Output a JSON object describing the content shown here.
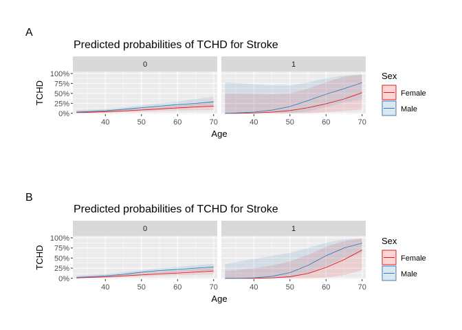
{
  "figure": {
    "colors": {
      "female": "#E41A1C",
      "male": "#377EB8",
      "female_ribbon": "#E41A1C",
      "male_ribbon": "#377EB8"
    },
    "legend": {
      "title": "Sex",
      "labels": [
        "Female",
        "Male"
      ],
      "placement": "right"
    }
  },
  "chart_data": [
    {
      "panel_label": "A",
      "type": "line",
      "title": "Predicted probabilities of TCHD for Stroke",
      "xlabel": "Age",
      "ylabel": "TCHD",
      "xlim": [
        31,
        71
      ],
      "ylim": [
        -0.02,
        1.05
      ],
      "x_ticks": [
        40,
        50,
        60,
        70
      ],
      "y_ticks": [
        0,
        0.25,
        0.5,
        0.75,
        1.0
      ],
      "y_tick_labels": [
        "0%",
        "25%",
        "50%",
        "75%",
        "100%"
      ],
      "facets": [
        {
          "label": "0",
          "x": [
            32,
            35,
            40,
            45,
            50,
            55,
            60,
            65,
            70
          ],
          "series": [
            {
              "name": "Female",
              "values": [
                0.02,
                0.025,
                0.04,
                0.06,
                0.085,
                0.11,
                0.135,
                0.16,
                0.18
              ],
              "lower": [
                0.0,
                0.005,
                0.015,
                0.03,
                0.045,
                0.06,
                0.07,
                0.08,
                0.085
              ],
              "upper": [
                0.06,
                0.07,
                0.08,
                0.1,
                0.13,
                0.16,
                0.2,
                0.25,
                0.3
              ]
            },
            {
              "name": "Male",
              "values": [
                0.03,
                0.04,
                0.065,
                0.1,
                0.14,
                0.18,
                0.22,
                0.25,
                0.29
              ],
              "lower": [
                0.005,
                0.015,
                0.035,
                0.06,
                0.09,
                0.12,
                0.14,
                0.16,
                0.17
              ],
              "upper": [
                0.08,
                0.09,
                0.11,
                0.15,
                0.2,
                0.25,
                0.3,
                0.36,
                0.42
              ]
            }
          ]
        },
        {
          "label": "1",
          "x": [
            32,
            35,
            40,
            45,
            50,
            55,
            60,
            65,
            70
          ],
          "series": [
            {
              "name": "Female",
              "values": [
                0.0,
                0.0,
                0.01,
                0.03,
                0.07,
                0.14,
                0.24,
                0.36,
                0.52
              ],
              "lower": [
                0.0,
                0.0,
                0.0,
                0.0,
                0.0,
                0.0,
                0.03,
                0.06,
                0.1
              ],
              "upper": [
                0.5,
                0.5,
                0.49,
                0.48,
                0.5,
                0.62,
                0.78,
                0.92,
                0.97
              ]
            },
            {
              "name": "Male",
              "values": [
                0.0,
                0.01,
                0.03,
                0.08,
                0.17,
                0.32,
                0.48,
                0.62,
                0.77
              ],
              "lower": [
                0.0,
                0.0,
                0.0,
                0.0,
                0.0,
                0.05,
                0.15,
                0.28,
                0.35
              ],
              "upper": [
                0.78,
                0.76,
                0.73,
                0.7,
                0.7,
                0.78,
                0.88,
                0.95,
                0.98
              ]
            }
          ]
        }
      ]
    },
    {
      "panel_label": "B",
      "type": "line",
      "title": "Predicted probabilities of TCHD for Stroke",
      "xlabel": "Age",
      "ylabel": "TCHD",
      "xlim": [
        31,
        71
      ],
      "ylim": [
        -0.02,
        1.05
      ],
      "x_ticks": [
        40,
        50,
        60,
        70
      ],
      "y_ticks": [
        0,
        0.25,
        0.5,
        0.75,
        1.0
      ],
      "y_tick_labels": [
        "0%",
        "25%",
        "50%",
        "75%",
        "100%"
      ],
      "facets": [
        {
          "label": "0",
          "x": [
            32,
            35,
            40,
            45,
            50,
            55,
            60,
            65,
            70
          ],
          "series": [
            {
              "name": "Female",
              "values": [
                0.01,
                0.02,
                0.035,
                0.06,
                0.085,
                0.11,
                0.13,
                0.155,
                0.18
              ],
              "lower": [
                0.0,
                0.005,
                0.015,
                0.03,
                0.05,
                0.065,
                0.08,
                0.09,
                0.1
              ],
              "upper": [
                0.04,
                0.05,
                0.07,
                0.1,
                0.13,
                0.16,
                0.19,
                0.23,
                0.27
              ]
            },
            {
              "name": "Male",
              "values": [
                0.02,
                0.035,
                0.06,
                0.1,
                0.15,
                0.19,
                0.22,
                0.25,
                0.28
              ],
              "lower": [
                0.0,
                0.01,
                0.03,
                0.06,
                0.1,
                0.13,
                0.16,
                0.18,
                0.19
              ],
              "upper": [
                0.06,
                0.08,
                0.11,
                0.15,
                0.2,
                0.25,
                0.28,
                0.32,
                0.36
              ]
            }
          ]
        },
        {
          "label": "1",
          "x": [
            32,
            35,
            40,
            45,
            50,
            55,
            60,
            65,
            70
          ],
          "series": [
            {
              "name": "Female",
              "values": [
                0.0,
                0.0,
                0.0,
                0.01,
                0.04,
                0.12,
                0.27,
                0.46,
                0.7
              ],
              "lower": [
                0.0,
                0.0,
                0.0,
                0.0,
                0.0,
                0.0,
                0.02,
                0.08,
                0.2
              ],
              "upper": [
                0.18,
                0.2,
                0.25,
                0.32,
                0.42,
                0.58,
                0.78,
                0.92,
                0.98
              ]
            },
            {
              "name": "Male",
              "values": [
                0.0,
                0.0,
                0.01,
                0.05,
                0.14,
                0.32,
                0.56,
                0.75,
                0.87
              ],
              "lower": [
                0.0,
                0.0,
                0.0,
                0.0,
                0.02,
                0.12,
                0.3,
                0.5,
                0.62
              ],
              "upper": [
                0.35,
                0.4,
                0.48,
                0.55,
                0.63,
                0.75,
                0.88,
                0.96,
                0.99
              ]
            }
          ]
        }
      ]
    }
  ]
}
